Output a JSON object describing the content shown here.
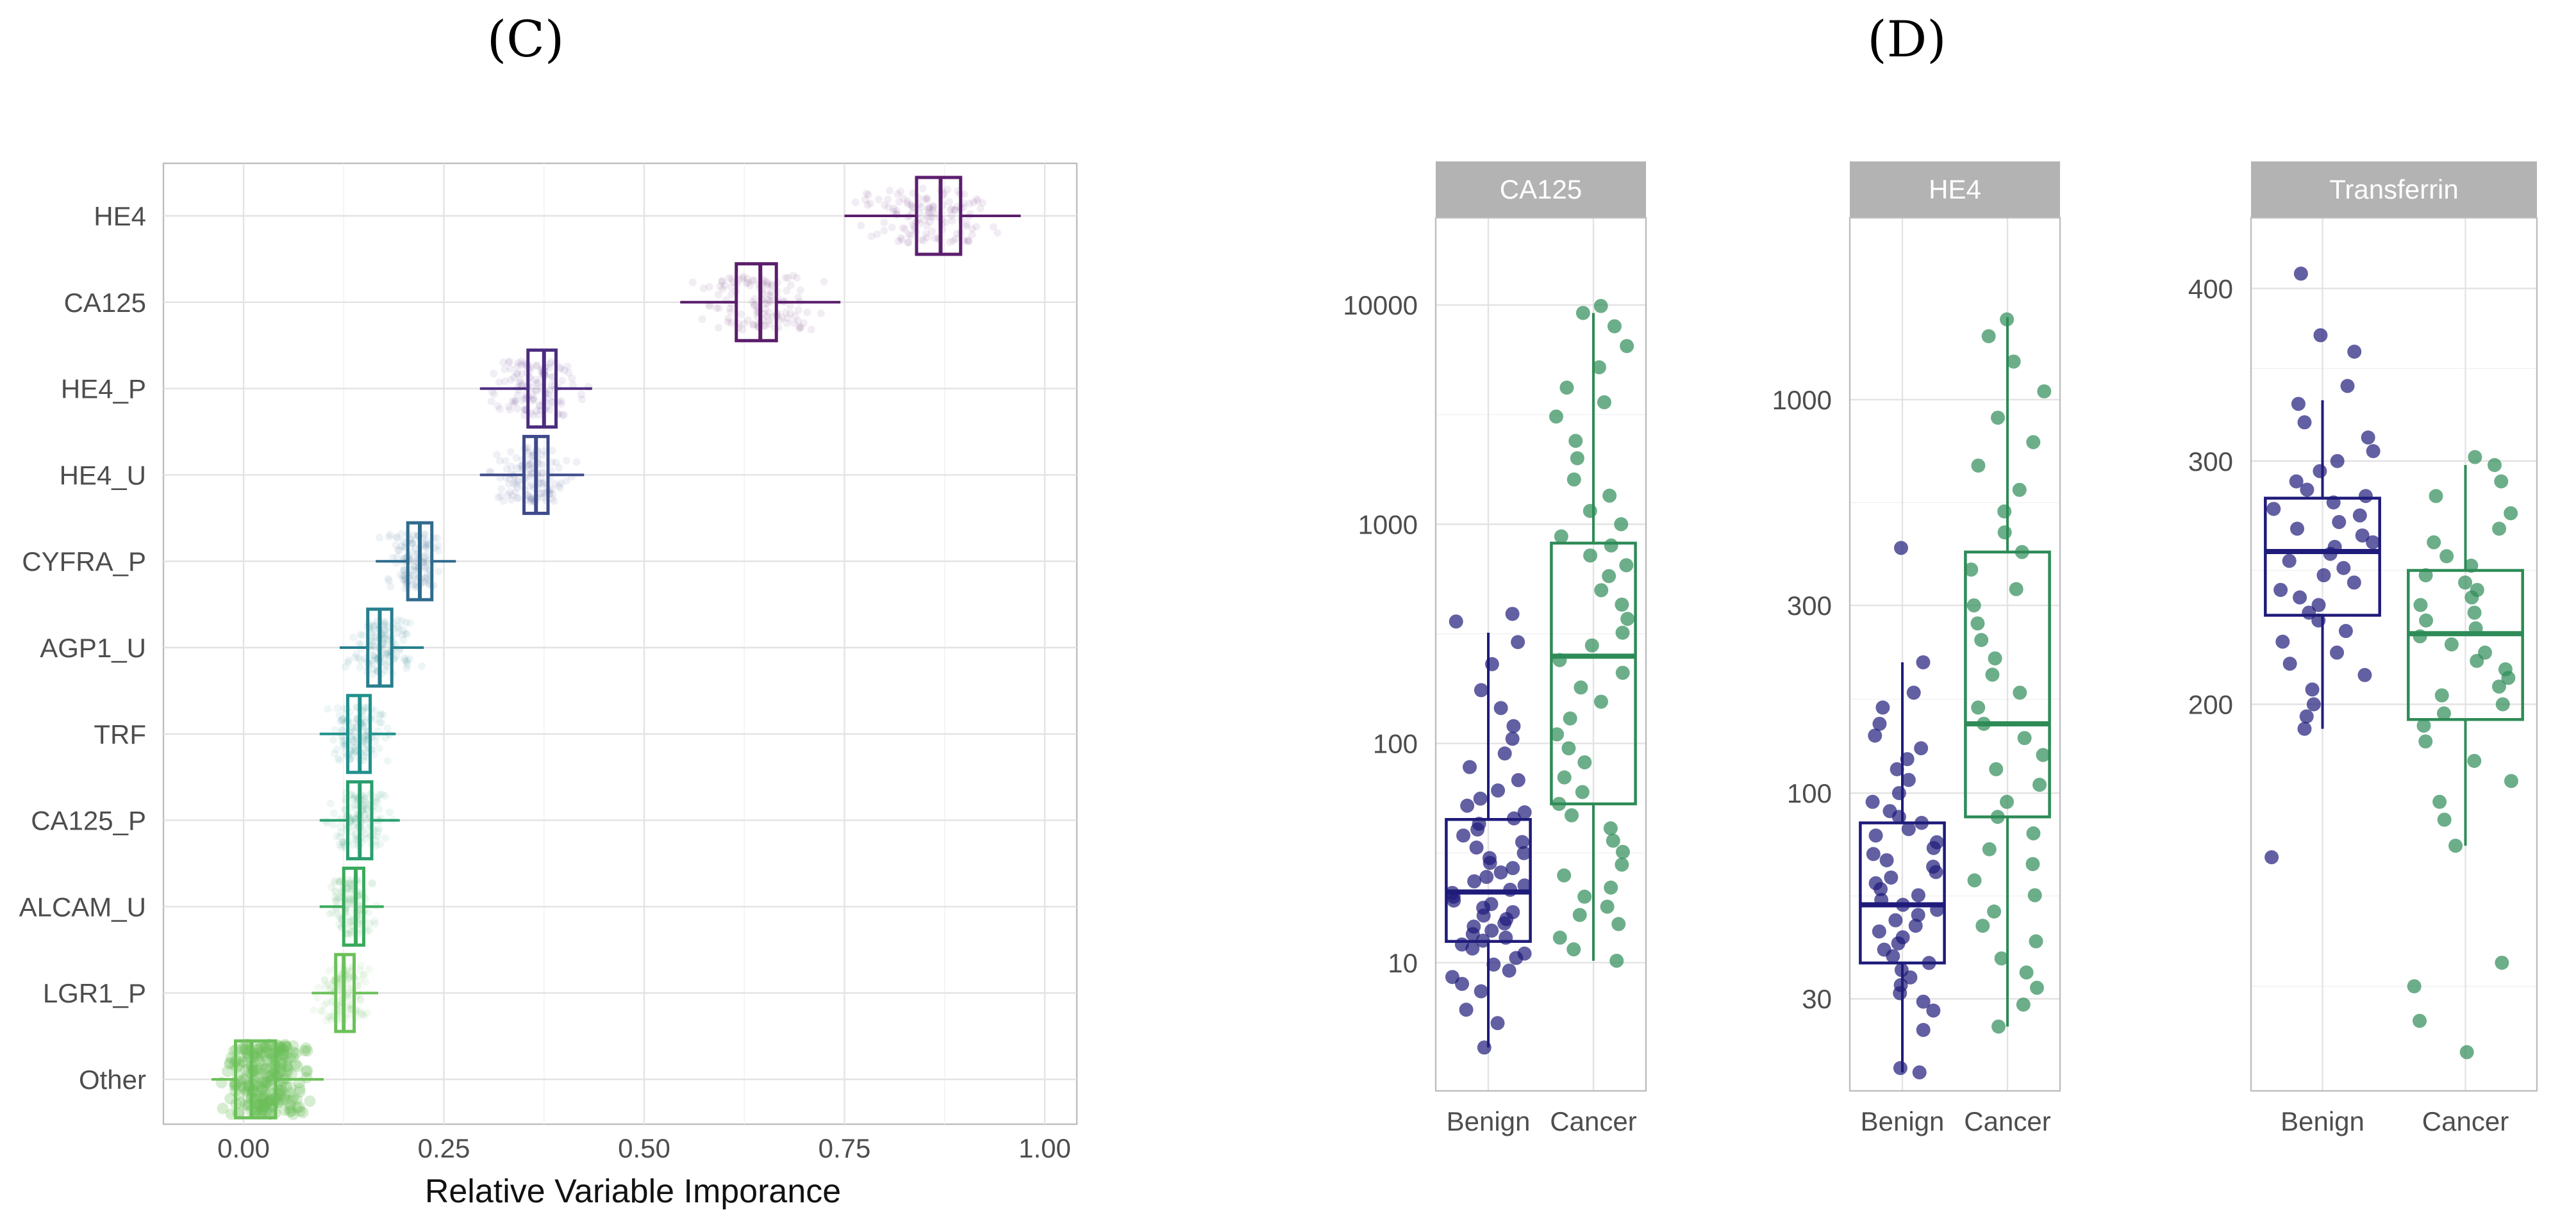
{
  "chart_data": [
    {
      "type": "boxplot",
      "panel_label": "(C)",
      "orientation": "horizontal",
      "xlabel": "Relative Variable Imporance",
      "ylabel": "",
      "xlim": [
        -0.1,
        1.04
      ],
      "xticks": [
        0.0,
        0.25,
        0.5,
        0.75,
        1.0
      ],
      "xtick_labels": [
        "0.00",
        "0.25",
        "0.50",
        "0.75",
        "1.00"
      ],
      "categories": [
        "HE4",
        "CA125",
        "HE4_P",
        "HE4_U",
        "CYFRA_P",
        "AGP1_U",
        "TRF",
        "CA125_P",
        "ALCAM_U",
        "LGR1_P",
        "Other"
      ],
      "boxes": [
        {
          "name": "HE4",
          "whisker_low": 0.75,
          "q1": 0.84,
          "median": 0.87,
          "q3": 0.895,
          "whisker_high": 0.97,
          "color": "#5c1e6e"
        },
        {
          "name": "CA125",
          "whisker_low": 0.545,
          "q1": 0.615,
          "median": 0.645,
          "q3": 0.665,
          "whisker_high": 0.745,
          "color": "#5a1c6b"
        },
        {
          "name": "HE4_P",
          "whisker_low": 0.295,
          "q1": 0.355,
          "median": 0.375,
          "q3": 0.39,
          "whisker_high": 0.435,
          "color": "#4b2c7f"
        },
        {
          "name": "HE4_U",
          "whisker_low": 0.295,
          "q1": 0.35,
          "median": 0.365,
          "q3": 0.38,
          "whisker_high": 0.425,
          "color": "#3f4a8a"
        },
        {
          "name": "CYFRA_P",
          "whisker_low": 0.165,
          "q1": 0.205,
          "median": 0.22,
          "q3": 0.235,
          "whisker_high": 0.265,
          "color": "#2f6b8e"
        },
        {
          "name": "AGP1_U",
          "whisker_low": 0.12,
          "q1": 0.155,
          "median": 0.17,
          "q3": 0.185,
          "whisker_high": 0.225,
          "color": "#277f8e"
        },
        {
          "name": "TRF",
          "whisker_low": 0.095,
          "q1": 0.13,
          "median": 0.145,
          "q3": 0.158,
          "whisker_high": 0.19,
          "color": "#21918c"
        },
        {
          "name": "CA125_P",
          "whisker_low": 0.095,
          "q1": 0.13,
          "median": 0.145,
          "q3": 0.16,
          "whisker_high": 0.195,
          "color": "#2a9e6f"
        },
        {
          "name": "ALCAM_U",
          "whisker_low": 0.095,
          "q1": 0.125,
          "median": 0.14,
          "q3": 0.15,
          "whisker_high": 0.175,
          "color": "#3aaa5c"
        },
        {
          "name": "LGR1_P",
          "whisker_low": 0.085,
          "q1": 0.115,
          "median": 0.125,
          "q3": 0.138,
          "whisker_high": 0.168,
          "color": "#6cc05a"
        },
        {
          "name": "Other",
          "whisker_low": -0.04,
          "q1": -0.01,
          "median": 0.01,
          "q3": 0.04,
          "whisker_high": 0.1,
          "color": "#6cc05a"
        }
      ]
    },
    {
      "type": "boxplot",
      "panel_label": "(D)",
      "facet": "CA125",
      "scale": "log",
      "ylim": [
        2.6,
        25000
      ],
      "yticks": [
        10,
        100,
        1000,
        10000
      ],
      "ytick_labels": [
        "10",
        "100",
        "1000",
        "10000"
      ],
      "categories": [
        "Benign",
        "Cancer"
      ],
      "colors": {
        "Benign": "#1f1b7a",
        "Cancer": "#2e8b57"
      },
      "boxes": [
        {
          "name": "Benign",
          "whisker_low": 4.1,
          "q1": 12.5,
          "median": 21,
          "q3": 45,
          "whisker_high": 320
        },
        {
          "name": "Cancer",
          "whisker_low": 10.2,
          "q1": 53,
          "median": 250,
          "q3": 820,
          "whisker_high": 9200
        }
      ],
      "points": [
        {
          "group": "Benign",
          "values": [
            4.1,
            5.3,
            6.1,
            7.4,
            8.0,
            8.6,
            9.2,
            9.8,
            10.5,
            11.0,
            11.6,
            12.1,
            12.6,
            13.0,
            13.5,
            14.0,
            14.6,
            15.1,
            15.8,
            16.4,
            17.0,
            17.8,
            18.5,
            19.2,
            20.0,
            20.8,
            21.5,
            22.5,
            23.5,
            24.6,
            25.8,
            27.0,
            28.5,
            30.0,
            31.6,
            33.5,
            35.5,
            38.0,
            40.5,
            43.0,
            45.5,
            48.5,
            52.0,
            56.0,
            61.0,
            68.0,
            78.0,
            90.0,
            105.0,
            120.0,
            145.0,
            175.0,
            230.0,
            290.0,
            360.0,
            390.0
          ]
        },
        {
          "group": "Cancer",
          "values": [
            10.2,
            11.5,
            13.0,
            15.0,
            16.5,
            18.0,
            20.0,
            22.0,
            25.0,
            28.0,
            32.0,
            36.0,
            41.0,
            47.0,
            53.0,
            60.0,
            70.0,
            82.0,
            95.0,
            110.0,
            130.0,
            155.0,
            180.0,
            210.0,
            240.0,
            280.0,
            320.0,
            370.0,
            430.0,
            500.0,
            580.0,
            650.0,
            720.0,
            800.0,
            880.0,
            1000.0,
            1150.0,
            1350.0,
            1600.0,
            2000.0,
            2400.0,
            3100.0,
            3600.0,
            4200.0,
            5200.0,
            6500.0,
            8000.0,
            9200.0,
            9900.0
          ]
        }
      ]
    },
    {
      "type": "boxplot",
      "facet": "HE4",
      "scale": "log",
      "ylim": [
        17.5,
        2900
      ],
      "yticks": [
        30,
        100,
        300,
        1000
      ],
      "ytick_labels": [
        "30",
        "100",
        "300",
        "1000"
      ],
      "categories": [
        "Benign",
        "Cancer"
      ],
      "colors": {
        "Benign": "#1f1b7a",
        "Cancer": "#2e8b57"
      },
      "boxes": [
        {
          "name": "Benign",
          "whisker_low": 19.5,
          "q1": 37,
          "median": 52,
          "q3": 84,
          "whisker_high": 215
        },
        {
          "name": "Cancer",
          "whisker_low": 25.5,
          "q1": 87,
          "median": 150,
          "q3": 410,
          "whisker_high": 1620
        }
      ],
      "points": [
        {
          "group": "Benign",
          "values": [
            19.5,
            20.0,
            25.0,
            28.0,
            29.5,
            31.0,
            32.5,
            34.0,
            35.5,
            37.0,
            38.5,
            40.0,
            41.5,
            43.0,
            44.5,
            46.0,
            47.5,
            49.0,
            50.5,
            52.0,
            53.5,
            55.0,
            57.0,
            59.0,
            61.0,
            63.0,
            65.0,
            67.5,
            70.0,
            72.5,
            75.0,
            78.0,
            81.0,
            84.0,
            87.0,
            90.0,
            95.0,
            100.0,
            108.0,
            115.0,
            122.0,
            130.0,
            140.0,
            150.0,
            165.0,
            180.0,
            215.0,
            420.0
          ]
        },
        {
          "group": "Cancer",
          "values": [
            25.5,
            29.0,
            32.0,
            35.0,
            38.0,
            42.0,
            46.0,
            50.0,
            55.0,
            60.0,
            66.0,
            72.0,
            79.0,
            87.0,
            95.0,
            105.0,
            115.0,
            125.0,
            138.0,
            150.0,
            165.0,
            180.0,
            200.0,
            220.0,
            245.0,
            270.0,
            300.0,
            330.0,
            370.0,
            410.0,
            460.0,
            520.0,
            590.0,
            680.0,
            780.0,
            900.0,
            1050.0,
            1250.0,
            1450.0,
            1600.0
          ]
        }
      ]
    },
    {
      "type": "boxplot",
      "facet": "Transferrin",
      "scale": "log",
      "ylim": [
        105,
        450
      ],
      "yticks": [
        200,
        300,
        400
      ],
      "ytick_labels": [
        "200",
        "300",
        "400"
      ],
      "minor_ticks": [
        125,
        250,
        350
      ],
      "categories": [
        "Benign",
        "Cancer"
      ],
      "colors": {
        "Benign": "#1f1b7a",
        "Cancer": "#2e8b57"
      },
      "boxes": [
        {
          "name": "Benign",
          "whisker_low": 192,
          "q1": 232,
          "median": 258,
          "q3": 282,
          "whisker_high": 332
        },
        {
          "name": "Cancer",
          "whisker_low": 158,
          "q1": 195,
          "median": 225,
          "q3": 250,
          "whisker_high": 298
        }
      ],
      "points": [
        {
          "group": "Benign",
          "values": [
            155,
            192,
            196,
            200,
            205,
            210,
            214,
            218,
            222,
            226,
            230,
            233,
            236,
            239,
            242,
            245,
            248,
            251,
            254,
            257,
            260,
            262,
            265,
            268,
            271,
            274,
            277,
            280,
            283,
            286,
            290,
            295,
            300,
            305,
            312,
            320,
            330,
            340,
            360,
            370,
            410
          ]
        },
        {
          "group": "Cancer",
          "values": [
            112,
            118,
            125,
            130,
            158,
            165,
            170,
            176,
            182,
            188,
            193,
            197,
            200,
            203,
            206,
            209,
            212,
            215,
            218,
            221,
            224,
            227,
            230,
            233,
            236,
            239,
            242,
            245,
            248,
            252,
            256,
            262,
            268,
            275,
            283,
            290,
            298,
            302
          ]
        }
      ]
    }
  ]
}
